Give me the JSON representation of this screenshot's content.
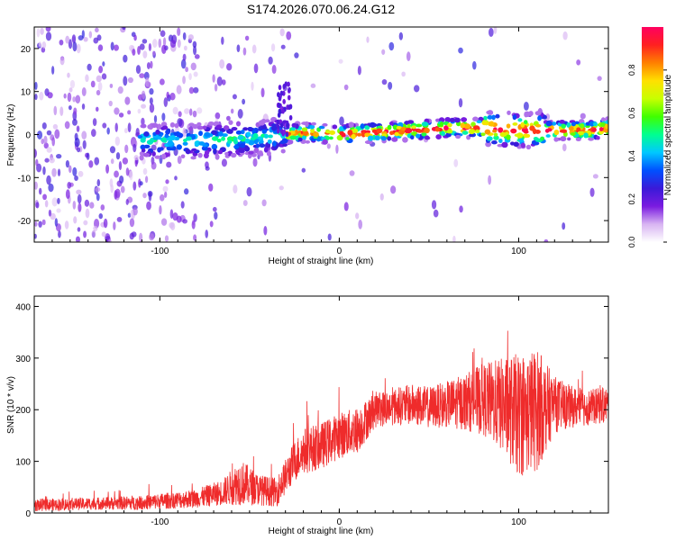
{
  "title": "S174.2026.070.06.24.G12",
  "chart_data": [
    {
      "type": "heatmap",
      "xlabel": "Height of straight line (km)",
      "ylabel": "Frequency (Hz)",
      "xlim": [
        -170,
        150
      ],
      "ylim": [
        -25,
        25
      ],
      "xticks": [
        -100,
        0,
        100
      ],
      "yticks": [
        -20,
        -10,
        0,
        10,
        20
      ],
      "colorbar": {
        "label": "Normalized spectral amplitude",
        "range": [
          0,
          1
        ],
        "ticks": [
          "0.0",
          "0.2",
          "0.4",
          "0.6",
          "0.8"
        ],
        "colors": [
          "#ffffff",
          "#d8b4f2",
          "#7a1be0",
          "#3a1ad8",
          "#0050ff",
          "#00c8ff",
          "#00ff90",
          "#40ff00",
          "#c8ff00",
          "#ffe000",
          "#ff8000",
          "#ff2020",
          "#ff0060"
        ]
      },
      "ridge": {
        "description_points_x": [
          -110,
          -80,
          -50,
          -30,
          -20,
          0,
          20,
          40,
          60,
          80,
          100,
          120,
          140,
          150
        ],
        "frequency_y": [
          -1.5,
          -1.5,
          -1,
          0,
          0.5,
          0,
          0.5,
          1,
          1.5,
          1.5,
          1,
          1,
          1,
          1.5
        ]
      }
    },
    {
      "type": "line",
      "xlabel": "Height of straight line (km)",
      "ylabel": "SNR (10 * v/v)",
      "xlim": [
        -170,
        150
      ],
      "ylim": [
        0,
        420
      ],
      "xticks": [
        -100,
        0,
        100
      ],
      "yticks": [
        0,
        100,
        200,
        300,
        400
      ],
      "color": "#ef2b2b",
      "envelope": {
        "x": [
          -170,
          -140,
          -110,
          -80,
          -65,
          -55,
          -45,
          -35,
          -25,
          -20,
          -10,
          0,
          10,
          20,
          30,
          40,
          50,
          60,
          70,
          80,
          90,
          100,
          110,
          120,
          130,
          140,
          150
        ],
        "mean": [
          15,
          18,
          20,
          28,
          40,
          60,
          45,
          40,
          100,
          120,
          130,
          150,
          160,
          200,
          205,
          210,
          205,
          210,
          215,
          220,
          210,
          190,
          200,
          210,
          205,
          205,
          210
        ],
        "spread": [
          12,
          12,
          14,
          18,
          25,
          45,
          30,
          28,
          40,
          45,
          45,
          45,
          45,
          35,
          35,
          40,
          40,
          45,
          55,
          70,
          90,
          120,
          120,
          55,
          40,
          35,
          35
        ]
      }
    }
  ]
}
